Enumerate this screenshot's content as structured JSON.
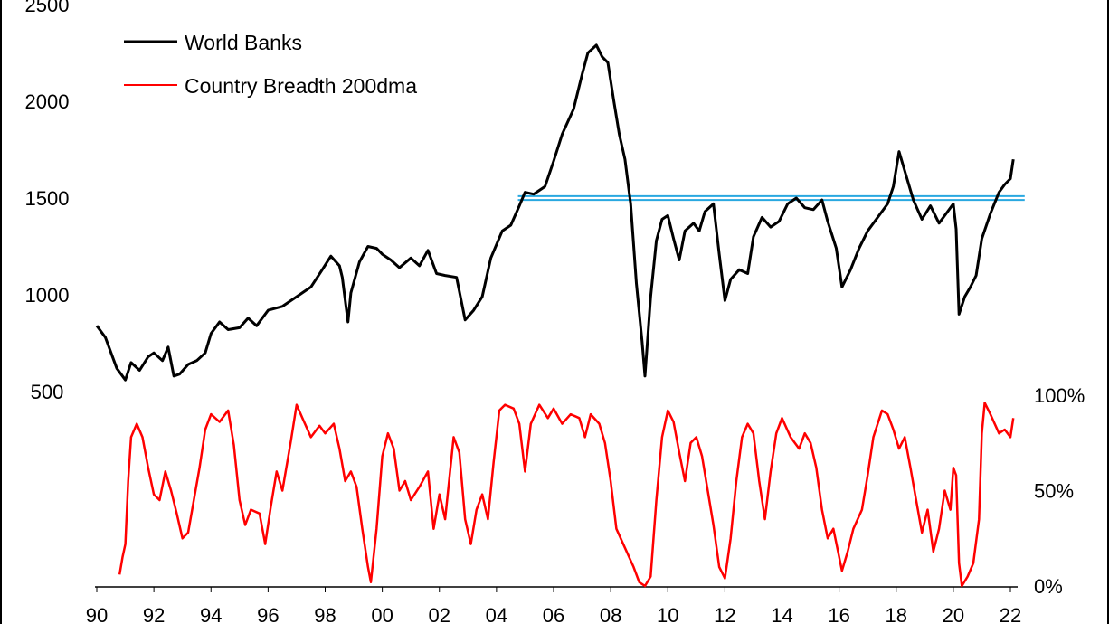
{
  "chart_data": {
    "type": "line",
    "legend": {
      "placement": "top-left",
      "entries": [
        {
          "label": "World Banks",
          "color": "#000000"
        },
        {
          "label": "Country Breadth 200dma",
          "color": "#ff0000"
        }
      ]
    },
    "x_axis": {
      "range": [
        1990,
        2022
      ],
      "tick_labels": [
        "90",
        "92",
        "94",
        "96",
        "98",
        "00",
        "02",
        "04",
        "06",
        "08",
        "10",
        "12",
        "14",
        "16",
        "18",
        "20",
        "22"
      ]
    },
    "left_axis": {
      "range": [
        500,
        2500
      ],
      "tick_labels": [
        "500",
        "1000",
        "1500",
        "2000",
        "2500"
      ]
    },
    "right_axis": {
      "range": [
        0,
        100
      ],
      "unit": "%",
      "tick_labels": [
        "0%",
        "50%",
        "100%"
      ]
    },
    "reference_lines": {
      "color": "#29a8e0",
      "from_x": 2004.75,
      "to_x": 2022.5,
      "values": [
        1490,
        1510
      ]
    },
    "series": [
      {
        "name": "World Banks",
        "axis": "left",
        "color": "#000000",
        "points": [
          [
            1990.0,
            840
          ],
          [
            1990.3,
            780
          ],
          [
            1990.7,
            620
          ],
          [
            1991.0,
            560
          ],
          [
            1991.2,
            650
          ],
          [
            1991.5,
            610
          ],
          [
            1991.8,
            680
          ],
          [
            1992.0,
            700
          ],
          [
            1992.3,
            660
          ],
          [
            1992.5,
            730
          ],
          [
            1992.7,
            580
          ],
          [
            1992.9,
            590
          ],
          [
            1993.2,
            640
          ],
          [
            1993.5,
            660
          ],
          [
            1993.8,
            700
          ],
          [
            1994.0,
            800
          ],
          [
            1994.3,
            860
          ],
          [
            1994.6,
            820
          ],
          [
            1995.0,
            830
          ],
          [
            1995.3,
            880
          ],
          [
            1995.6,
            840
          ],
          [
            1996.0,
            920
          ],
          [
            1996.5,
            940
          ],
          [
            1997.0,
            990
          ],
          [
            1997.5,
            1040
          ],
          [
            1997.9,
            1130
          ],
          [
            1998.2,
            1200
          ],
          [
            1998.5,
            1150
          ],
          [
            1998.6,
            1090
          ],
          [
            1998.8,
            860
          ],
          [
            1998.9,
            1010
          ],
          [
            1999.2,
            1170
          ],
          [
            1999.5,
            1250
          ],
          [
            1999.8,
            1240
          ],
          [
            2000.0,
            1210
          ],
          [
            2000.3,
            1180
          ],
          [
            2000.6,
            1140
          ],
          [
            2001.0,
            1190
          ],
          [
            2001.3,
            1150
          ],
          [
            2001.6,
            1230
          ],
          [
            2001.9,
            1110
          ],
          [
            2002.2,
            1100
          ],
          [
            2002.6,
            1090
          ],
          [
            2002.9,
            870
          ],
          [
            2003.2,
            920
          ],
          [
            2003.5,
            990
          ],
          [
            2003.8,
            1190
          ],
          [
            2004.2,
            1330
          ],
          [
            2004.5,
            1360
          ],
          [
            2004.8,
            1460
          ],
          [
            2005.0,
            1530
          ],
          [
            2005.3,
            1520
          ],
          [
            2005.7,
            1560
          ],
          [
            2006.0,
            1690
          ],
          [
            2006.3,
            1830
          ],
          [
            2006.7,
            1960
          ],
          [
            2007.0,
            2140
          ],
          [
            2007.2,
            2250
          ],
          [
            2007.5,
            2290
          ],
          [
            2007.7,
            2230
          ],
          [
            2007.9,
            2200
          ],
          [
            2008.1,
            2010
          ],
          [
            2008.3,
            1830
          ],
          [
            2008.5,
            1700
          ],
          [
            2008.7,
            1470
          ],
          [
            2008.9,
            1060
          ],
          [
            2009.1,
            760
          ],
          [
            2009.2,
            580
          ],
          [
            2009.4,
            990
          ],
          [
            2009.6,
            1280
          ],
          [
            2009.8,
            1390
          ],
          [
            2010.0,
            1410
          ],
          [
            2010.2,
            1290
          ],
          [
            2010.4,
            1180
          ],
          [
            2010.6,
            1330
          ],
          [
            2010.9,
            1370
          ],
          [
            2011.1,
            1330
          ],
          [
            2011.3,
            1430
          ],
          [
            2011.6,
            1470
          ],
          [
            2011.8,
            1210
          ],
          [
            2012.0,
            970
          ],
          [
            2012.2,
            1080
          ],
          [
            2012.5,
            1130
          ],
          [
            2012.8,
            1110
          ],
          [
            2013.0,
            1300
          ],
          [
            2013.3,
            1400
          ],
          [
            2013.6,
            1350
          ],
          [
            2013.9,
            1380
          ],
          [
            2014.2,
            1470
          ],
          [
            2014.5,
            1500
          ],
          [
            2014.8,
            1450
          ],
          [
            2015.1,
            1440
          ],
          [
            2015.4,
            1490
          ],
          [
            2015.6,
            1380
          ],
          [
            2015.9,
            1240
          ],
          [
            2016.1,
            1040
          ],
          [
            2016.4,
            1130
          ],
          [
            2016.7,
            1240
          ],
          [
            2017.0,
            1330
          ],
          [
            2017.3,
            1390
          ],
          [
            2017.7,
            1470
          ],
          [
            2017.9,
            1560
          ],
          [
            2018.1,
            1740
          ],
          [
            2018.3,
            1640
          ],
          [
            2018.6,
            1490
          ],
          [
            2018.9,
            1390
          ],
          [
            2019.2,
            1460
          ],
          [
            2019.5,
            1370
          ],
          [
            2019.8,
            1430
          ],
          [
            2020.0,
            1470
          ],
          [
            2020.1,
            1340
          ],
          [
            2020.2,
            900
          ],
          [
            2020.4,
            990
          ],
          [
            2020.6,
            1040
          ],
          [
            2020.8,
            1100
          ],
          [
            2021.0,
            1290
          ],
          [
            2021.3,
            1420
          ],
          [
            2021.6,
            1530
          ],
          [
            2021.8,
            1570
          ],
          [
            2022.0,
            1600
          ],
          [
            2022.1,
            1700
          ]
        ]
      },
      {
        "name": "Country Breadth 200dma",
        "axis": "right",
        "color": "#ff0000",
        "points": [
          [
            1990.8,
            6
          ],
          [
            1990.9,
            15
          ],
          [
            1991.0,
            22
          ],
          [
            1991.1,
            55
          ],
          [
            1991.2,
            78
          ],
          [
            1991.4,
            85
          ],
          [
            1991.6,
            78
          ],
          [
            1991.8,
            62
          ],
          [
            1992.0,
            48
          ],
          [
            1992.2,
            45
          ],
          [
            1992.4,
            60
          ],
          [
            1992.6,
            50
          ],
          [
            1992.8,
            38
          ],
          [
            1993.0,
            25
          ],
          [
            1993.2,
            28
          ],
          [
            1993.4,
            45
          ],
          [
            1993.6,
            62
          ],
          [
            1993.8,
            82
          ],
          [
            1994.0,
            90
          ],
          [
            1994.3,
            86
          ],
          [
            1994.6,
            92
          ],
          [
            1994.8,
            74
          ],
          [
            1995.0,
            45
          ],
          [
            1995.2,
            32
          ],
          [
            1995.4,
            40
          ],
          [
            1995.7,
            38
          ],
          [
            1995.9,
            22
          ],
          [
            1996.1,
            42
          ],
          [
            1996.3,
            60
          ],
          [
            1996.5,
            50
          ],
          [
            1996.8,
            76
          ],
          [
            1997.0,
            95
          ],
          [
            1997.2,
            88
          ],
          [
            1997.5,
            78
          ],
          [
            1997.8,
            84
          ],
          [
            1998.0,
            80
          ],
          [
            1998.3,
            85
          ],
          [
            1998.5,
            72
          ],
          [
            1998.7,
            55
          ],
          [
            1998.9,
            60
          ],
          [
            1999.1,
            52
          ],
          [
            1999.3,
            30
          ],
          [
            1999.5,
            10
          ],
          [
            1999.6,
            2
          ],
          [
            1999.8,
            30
          ],
          [
            2000.0,
            68
          ],
          [
            2000.2,
            80
          ],
          [
            2000.4,
            72
          ],
          [
            2000.6,
            50
          ],
          [
            2000.8,
            55
          ],
          [
            2001.0,
            45
          ],
          [
            2001.3,
            52
          ],
          [
            2001.6,
            60
          ],
          [
            2001.8,
            30
          ],
          [
            2002.0,
            48
          ],
          [
            2002.2,
            35
          ],
          [
            2002.5,
            78
          ],
          [
            2002.7,
            70
          ],
          [
            2002.9,
            35
          ],
          [
            2003.1,
            22
          ],
          [
            2003.3,
            40
          ],
          [
            2003.5,
            48
          ],
          [
            2003.7,
            35
          ],
          [
            2003.9,
            65
          ],
          [
            2004.1,
            92
          ],
          [
            2004.3,
            95
          ],
          [
            2004.6,
            93
          ],
          [
            2004.8,
            85
          ],
          [
            2005.0,
            60
          ],
          [
            2005.2,
            85
          ],
          [
            2005.5,
            95
          ],
          [
            2005.8,
            88
          ],
          [
            2006.0,
            93
          ],
          [
            2006.3,
            85
          ],
          [
            2006.6,
            90
          ],
          [
            2006.9,
            88
          ],
          [
            2007.1,
            78
          ],
          [
            2007.3,
            90
          ],
          [
            2007.6,
            85
          ],
          [
            2007.8,
            75
          ],
          [
            2008.0,
            55
          ],
          [
            2008.2,
            30
          ],
          [
            2008.5,
            20
          ],
          [
            2008.8,
            10
          ],
          [
            2009.0,
            2
          ],
          [
            2009.2,
            0
          ],
          [
            2009.4,
            5
          ],
          [
            2009.6,
            45
          ],
          [
            2009.8,
            78
          ],
          [
            2010.0,
            92
          ],
          [
            2010.2,
            86
          ],
          [
            2010.4,
            70
          ],
          [
            2010.6,
            55
          ],
          [
            2010.8,
            75
          ],
          [
            2011.0,
            78
          ],
          [
            2011.2,
            68
          ],
          [
            2011.4,
            50
          ],
          [
            2011.6,
            32
          ],
          [
            2011.8,
            10
          ],
          [
            2012.0,
            4
          ],
          [
            2012.2,
            25
          ],
          [
            2012.4,
            55
          ],
          [
            2012.6,
            78
          ],
          [
            2012.8,
            85
          ],
          [
            2013.0,
            80
          ],
          [
            2013.2,
            55
          ],
          [
            2013.4,
            35
          ],
          [
            2013.6,
            60
          ],
          [
            2013.8,
            80
          ],
          [
            2014.0,
            88
          ],
          [
            2014.3,
            78
          ],
          [
            2014.6,
            72
          ],
          [
            2014.8,
            80
          ],
          [
            2015.0,
            75
          ],
          [
            2015.2,
            62
          ],
          [
            2015.4,
            40
          ],
          [
            2015.6,
            25
          ],
          [
            2015.8,
            30
          ],
          [
            2016.1,
            8
          ],
          [
            2016.3,
            18
          ],
          [
            2016.5,
            30
          ],
          [
            2016.8,
            40
          ],
          [
            2017.0,
            58
          ],
          [
            2017.2,
            78
          ],
          [
            2017.5,
            92
          ],
          [
            2017.7,
            90
          ],
          [
            2017.9,
            82
          ],
          [
            2018.1,
            72
          ],
          [
            2018.3,
            78
          ],
          [
            2018.5,
            62
          ],
          [
            2018.7,
            45
          ],
          [
            2018.9,
            28
          ],
          [
            2019.1,
            40
          ],
          [
            2019.3,
            18
          ],
          [
            2019.5,
            30
          ],
          [
            2019.7,
            50
          ],
          [
            2019.9,
            40
          ],
          [
            2020.0,
            62
          ],
          [
            2020.1,
            58
          ],
          [
            2020.2,
            12
          ],
          [
            2020.3,
            0
          ],
          [
            2020.5,
            5
          ],
          [
            2020.7,
            12
          ],
          [
            2020.9,
            35
          ],
          [
            2021.0,
            80
          ],
          [
            2021.1,
            96
          ],
          [
            2021.3,
            90
          ],
          [
            2021.6,
            80
          ],
          [
            2021.8,
            82
          ],
          [
            2022.0,
            78
          ],
          [
            2022.1,
            88
          ]
        ]
      }
    ]
  }
}
